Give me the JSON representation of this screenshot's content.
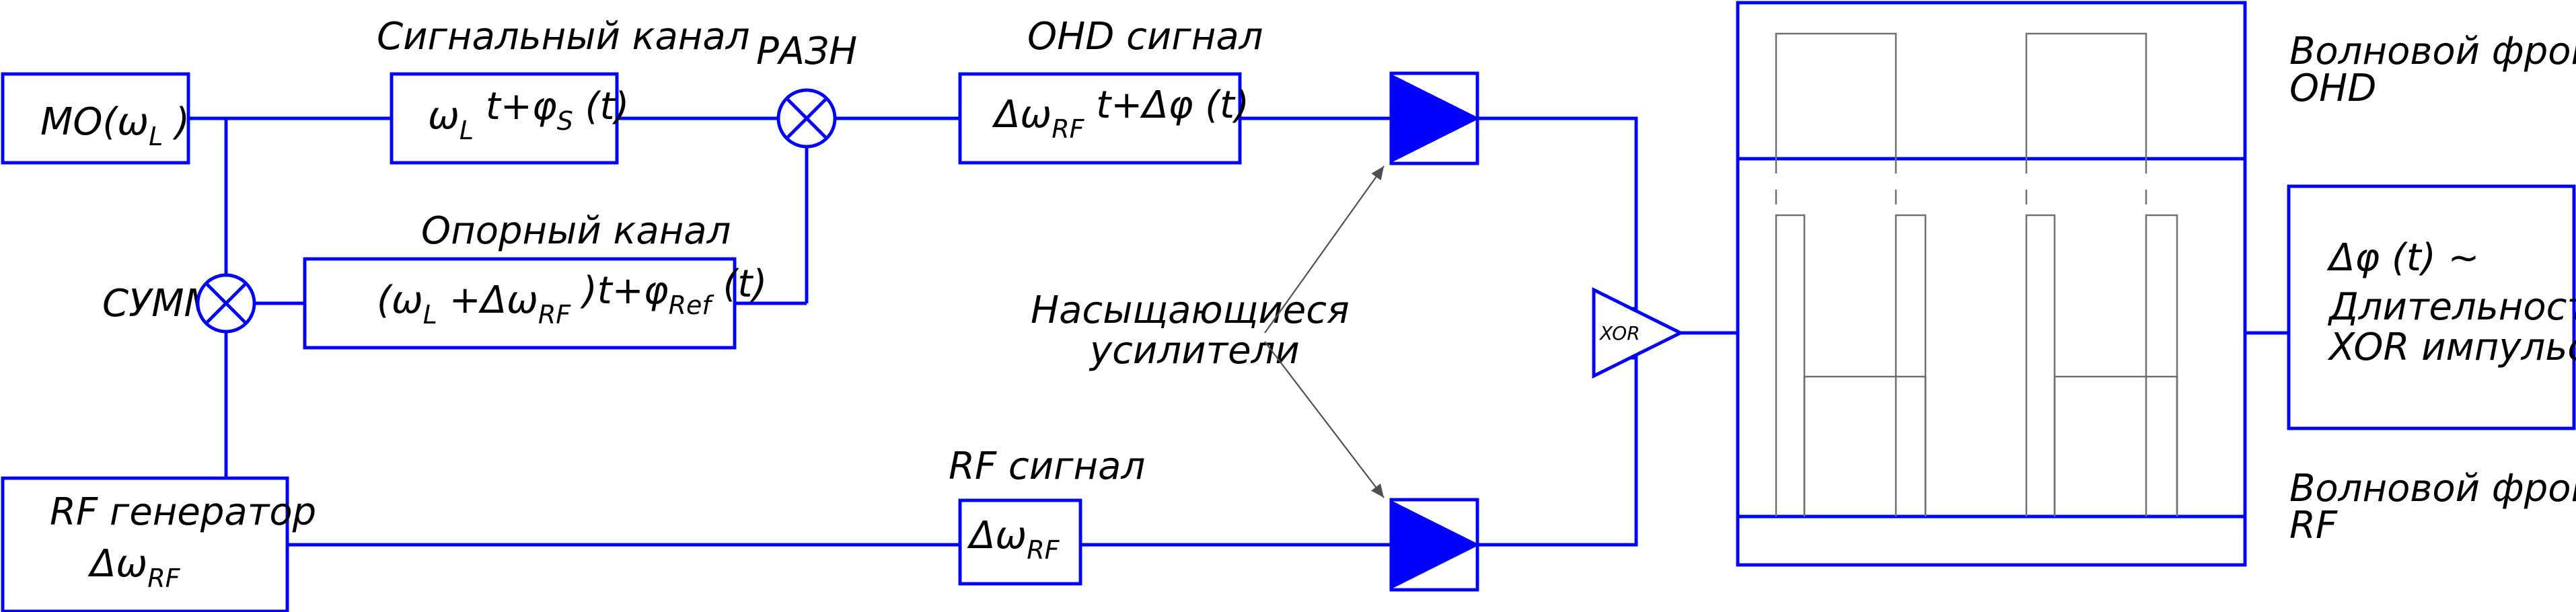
{
  "blocks": {
    "lo": {
      "main": "MO(ω",
      "sub": "L",
      "tail": " )"
    },
    "signal_channel": {
      "title": "Сигнальный канал",
      "omega": "ω",
      "omega_sub": "L",
      "mid": " t+φ",
      "phi_sub": "S",
      "tail": " (t)"
    },
    "mixer": {
      "label": "РАЗН"
    },
    "ref_channel": {
      "title": "Опорный канал",
      "p1": "(ω",
      "p1_sub": "L",
      "p2": " +Δω",
      "p2_sub": "RF",
      "p3": " )t+φ",
      "p3_sub": "Ref",
      "p4": " (t)"
    },
    "summer": {
      "label": "СУММ"
    },
    "ohd": {
      "title": "OHD сигнал",
      "p1": "Δω",
      "p1_sub": "RF",
      "p2": " t+Δφ (t)"
    },
    "rf_gen": {
      "line1": "RF генератор",
      "p1": "Δω",
      "p1_sub": "RF"
    },
    "rf_signal": {
      "title": "RF сигнал",
      "p1": "Δω",
      "p1_sub": "RF"
    },
    "amp_note": {
      "line1": "Насыщающиеся",
      "line2": "усилители"
    },
    "xor": {
      "label": "XOR"
    },
    "wavefront_ohd": {
      "line1": "Волновой фрон",
      "line2": "OHD"
    },
    "wavefront_rf": {
      "line1": "Волновой фрон",
      "line2": "RF"
    },
    "output": {
      "line1": "Δφ (t) ~",
      "line2": "Длительность",
      "line3": "XOR импульсов"
    }
  }
}
